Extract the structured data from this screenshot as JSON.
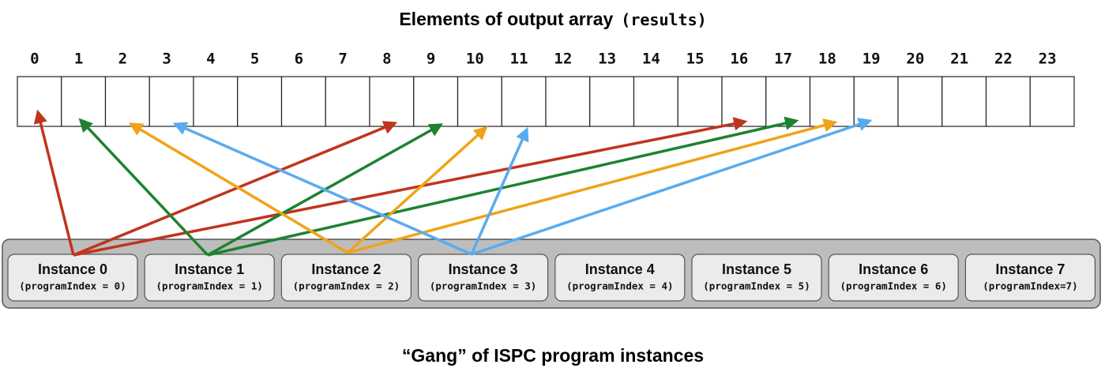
{
  "title": {
    "text": "Elements of output array",
    "code": "(results)"
  },
  "indices": [
    0,
    1,
    2,
    3,
    4,
    5,
    6,
    7,
    8,
    9,
    10,
    11,
    12,
    13,
    14,
    15,
    16,
    17,
    18,
    19,
    20,
    21,
    22,
    23
  ],
  "instances": [
    {
      "name": "Instance 0",
      "index_label": "(programIndex = 0)"
    },
    {
      "name": "Instance 1",
      "index_label": "(programIndex = 1)"
    },
    {
      "name": "Instance 2",
      "index_label": "(programIndex = 2)"
    },
    {
      "name": "Instance 3",
      "index_label": "(programIndex = 3)"
    },
    {
      "name": "Instance 4",
      "index_label": "(programIndex = 4)"
    },
    {
      "name": "Instance 5",
      "index_label": "(programIndex = 5)"
    },
    {
      "name": "Instance 6",
      "index_label": "(programIndex = 6)"
    },
    {
      "name": "Instance 7",
      "index_label": "(programIndex=7)"
    }
  ],
  "caption": "“Gang” of ISPC program instances"
}
